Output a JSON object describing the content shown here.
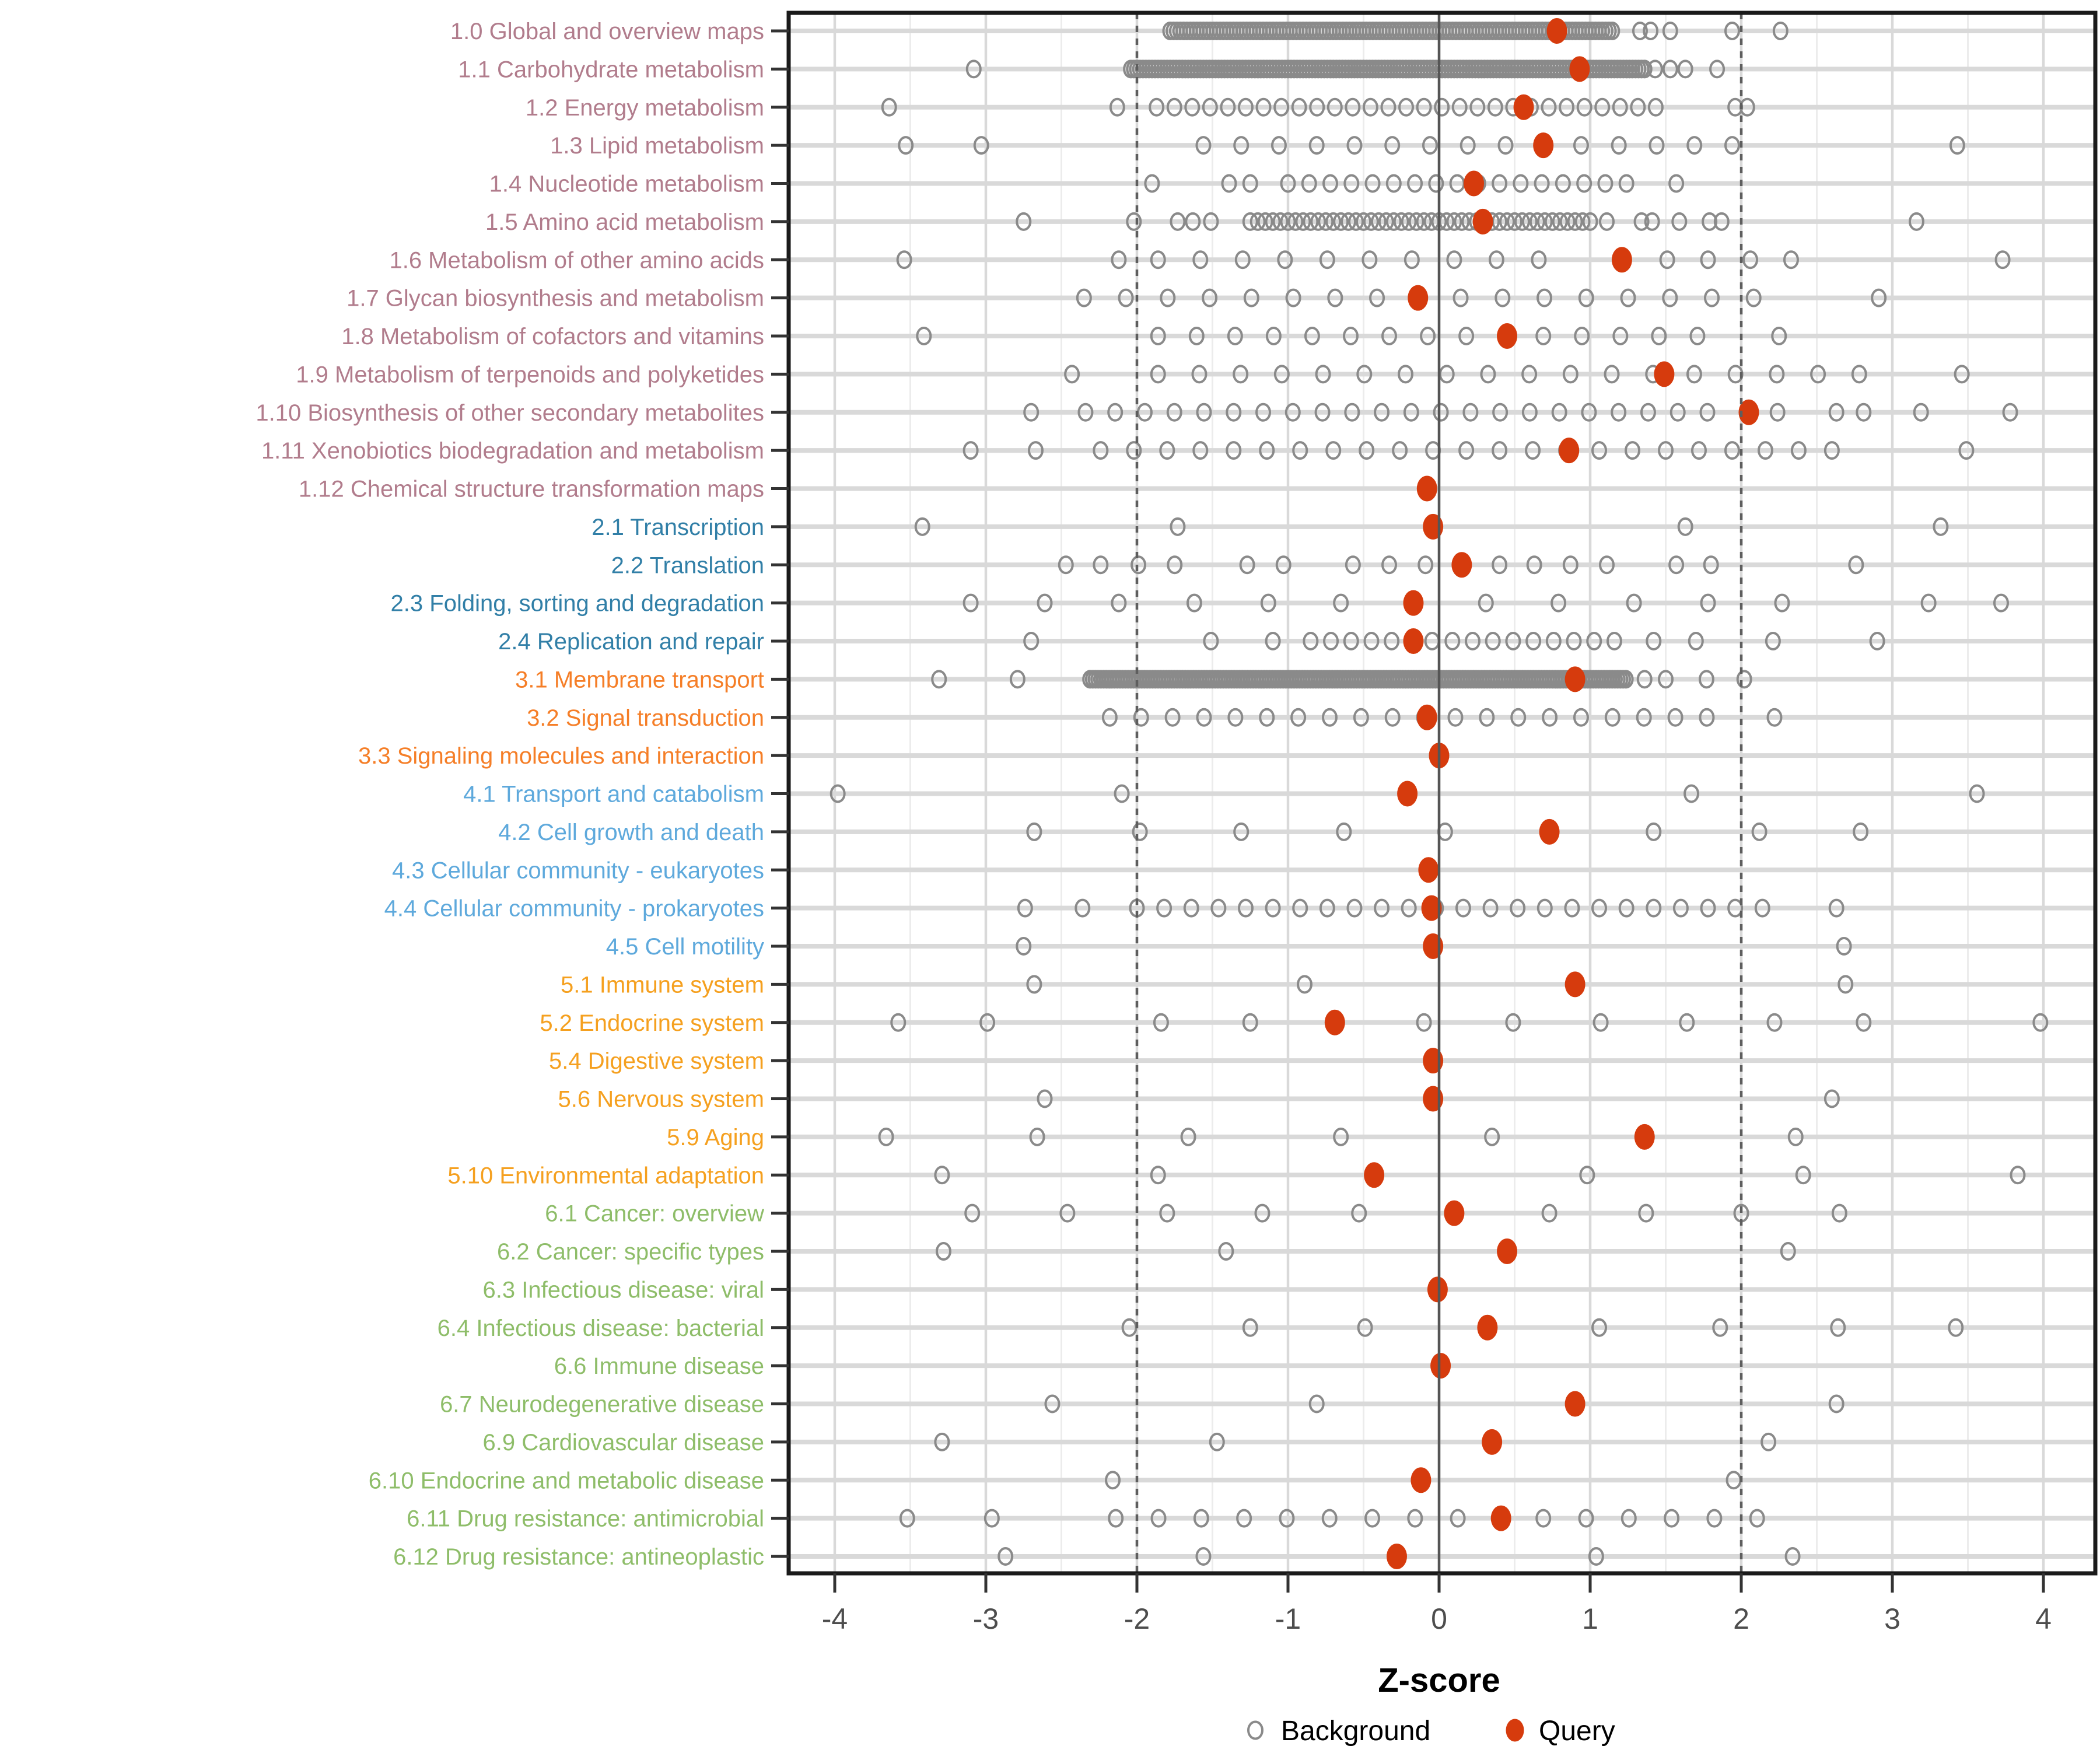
{
  "chart_data": {
    "type": "scatter",
    "title": "",
    "xlabel": "Z-score",
    "xlim": [
      -4.33,
      4.34
    ],
    "x_ticks": [
      -4,
      -3,
      -2,
      -1,
      0,
      1,
      2,
      3,
      4
    ],
    "reference_lines": {
      "solid": [
        0
      ],
      "dotted": [
        -2,
        2
      ]
    },
    "legend": [
      {
        "label": "Background",
        "marker": "open-circle",
        "color": "#8A8A8A"
      },
      {
        "label": "Query",
        "marker": "filled-circle",
        "color": "#D63B0D"
      }
    ],
    "colors": {
      "query": "#D63B0D",
      "background_stroke": "#8A8A8A",
      "grid_major": "#D9D9D9",
      "grid_minor": "#ECECEC",
      "row_line": "#D9D9D9",
      "ref_dotted": "#5E5E5E",
      "ref_zero": "#555555",
      "axis_text": "#4D4D4D",
      "tick": "#333333",
      "panel_border": "#1A1A1A",
      "xlabel_color": "#000000"
    },
    "groups": [
      {
        "id": "1",
        "color": "#B17C8C"
      },
      {
        "id": "2",
        "color": "#317FA7"
      },
      {
        "id": "3",
        "color": "#F57E27"
      },
      {
        "id": "4",
        "color": "#5EA9DC"
      },
      {
        "id": "5",
        "color": "#F5A01F"
      },
      {
        "id": "6",
        "color": "#8EBD69"
      }
    ],
    "rows": [
      {
        "label": "1.0 Global and overview maps",
        "group": "1",
        "query": 0.78,
        "background": {
          "runs": [
            [
              -1.78,
              1.15,
              0.022
            ]
          ],
          "points": [
            1.33,
            1.4,
            1.53,
            1.94,
            2.26
          ]
        }
      },
      {
        "label": "1.1 Carbohydrate metabolism",
        "group": "1",
        "query": 0.93,
        "background": {
          "runs": [
            [
              -2.04,
              1.36,
              0.02
            ]
          ],
          "points": [
            -3.08,
            1.43,
            1.53,
            1.63,
            1.84
          ]
        }
      },
      {
        "label": "1.2 Energy metabolism",
        "group": "1",
        "query": 0.56,
        "background": {
          "runs": [
            [
              -1.87,
              1.53,
              0.118
            ]
          ],
          "points": [
            -3.64,
            -2.13,
            1.96,
            2.04
          ]
        }
      },
      {
        "label": "1.3 Lipid metabolism",
        "group": "1",
        "query": 0.69,
        "background": {
          "runs": [
            [
              -1.56,
              2.18,
              0.25
            ]
          ],
          "points": [
            -3.53,
            -3.03,
            3.43
          ]
        }
      },
      {
        "label": "1.4 Nucleotide metabolism",
        "group": "1",
        "query": 0.23,
        "background": {
          "runs": [
            [
              -1.0,
              1.31,
              0.14
            ]
          ],
          "points": [
            -1.9,
            -1.39,
            -1.25,
            1.57
          ]
        }
      },
      {
        "label": "1.5 Amino acid metabolism",
        "group": "1",
        "query": 0.29,
        "background": {
          "runs": [
            [
              -1.25,
              1.03,
              0.05
            ]
          ],
          "points": [
            -2.75,
            -2.02,
            -1.73,
            -1.63,
            -1.51,
            1.11,
            1.34,
            1.41,
            1.59,
            1.79,
            1.87,
            3.16
          ]
        }
      },
      {
        "label": "1.6 Metabolism of other amino acids",
        "group": "1",
        "query": 1.21,
        "background": {
          "runs": [
            [
              -1.86,
              0.92,
              0.28
            ]
          ],
          "points": [
            -3.54,
            -2.12,
            1.51,
            1.78,
            2.06,
            2.33,
            3.73
          ]
        }
      },
      {
        "label": "1.7 Glycan biosynthesis and metabolism",
        "group": "1",
        "query": -0.14,
        "background": {
          "runs": [
            [
              -2.35,
              2.35,
              0.277
            ]
          ],
          "points": [
            2.91
          ]
        }
      },
      {
        "label": "1.8 Metabolism of cofactors and vitamins",
        "group": "1",
        "query": 0.45,
        "background": {
          "runs": [
            [
              -1.86,
              1.75,
              0.255
            ]
          ],
          "points": [
            -3.41,
            2.25
          ]
        }
      },
      {
        "label": "1.9 Metabolism of terpenoids and polyketides",
        "group": "1",
        "query": 1.49,
        "background": {
          "runs": [
            [
              -1.86,
              2.88,
              0.273
            ]
          ],
          "points": [
            -2.43,
            3.46
          ]
        }
      },
      {
        "label": "1.10 Biosynthesis of other secondary metabolites",
        "group": "1",
        "query": 2.05,
        "background": {
          "runs": [
            [
              -2.34,
              1.86,
              0.196
            ]
          ],
          "points": [
            -2.7,
            2.24,
            2.63,
            2.81,
            3.19,
            3.78
          ]
        }
      },
      {
        "label": "1.11 Xenobiotics biodegradation and metabolism",
        "group": "1",
        "query": 0.86,
        "background": {
          "runs": [
            [
              -2.24,
              2.64,
              0.22
            ]
          ],
          "points": [
            -3.1,
            -2.67,
            3.49
          ]
        }
      },
      {
        "label": "1.12 Chemical structure transformation maps",
        "group": "1",
        "query": -0.08,
        "background": {
          "runs": [],
          "points": []
        }
      },
      {
        "label": "2.1 Transcription",
        "group": "2",
        "query": -0.04,
        "background": {
          "runs": [],
          "points": [
            -3.42,
            -1.73,
            1.63,
            3.32
          ]
        }
      },
      {
        "label": "2.2 Translation",
        "group": "2",
        "query": 0.15,
        "background": {
          "runs": [],
          "points": [
            -2.47,
            -2.24,
            -1.99,
            -1.75,
            -1.27,
            -1.03,
            -0.57,
            -0.33,
            -0.09,
            0.4,
            0.63,
            0.87,
            1.11,
            1.57,
            1.8,
            2.76
          ]
        }
      },
      {
        "label": "2.3 Folding, sorting and degradation",
        "group": "2",
        "query": -0.17,
        "background": {
          "runs": [],
          "points": [
            -3.1,
            -2.61,
            -2.12,
            -1.62,
            -1.13,
            -0.65,
            0.31,
            0.79,
            1.29,
            1.78,
            2.27,
            3.24,
            3.72
          ]
        }
      },
      {
        "label": "2.4 Replication and repair",
        "group": "2",
        "query": -0.17,
        "background": {
          "runs": [
            [
              -0.85,
              1.16,
              0.134
            ]
          ],
          "points": [
            -2.7,
            -1.51,
            -1.1,
            1.42,
            1.7,
            2.21,
            2.9
          ]
        }
      },
      {
        "label": "3.1 Membrane transport",
        "group": "3",
        "query": 0.9,
        "background": {
          "runs": [
            [
              -2.31,
              1.25,
              0.018
            ]
          ],
          "points": [
            -3.31,
            -2.79,
            1.36,
            1.5,
            1.77,
            2.02
          ]
        }
      },
      {
        "label": "3.2 Signal transduction",
        "group": "3",
        "query": -0.08,
        "background": {
          "runs": [
            [
              -2.18,
              1.84,
              0.208
            ]
          ],
          "points": [
            2.22
          ]
        }
      },
      {
        "label": "3.3 Signaling molecules and interaction",
        "group": "3",
        "query": 0.0,
        "background": {
          "runs": [],
          "points": []
        }
      },
      {
        "label": "4.1 Transport and catabolism",
        "group": "4",
        "query": -0.21,
        "background": {
          "runs": [],
          "points": [
            -3.98,
            -2.1,
            1.67,
            3.56
          ]
        }
      },
      {
        "label": "4.2 Cell growth and death",
        "group": "4",
        "query": 0.73,
        "background": {
          "runs": [],
          "points": [
            -2.68,
            -1.98,
            -1.31,
            -0.63,
            0.04,
            1.42,
            2.12,
            2.79
          ]
        }
      },
      {
        "label": "4.3 Cellular community - eukaryotes",
        "group": "4",
        "query": -0.07,
        "background": {
          "runs": [],
          "points": []
        }
      },
      {
        "label": "4.4 Cellular community - prokaryotes",
        "group": "4",
        "query": -0.05,
        "background": {
          "runs": [
            [
              -2.0,
              2.27,
              0.18
            ]
          ],
          "points": [
            -2.74,
            -2.36,
            2.63
          ]
        }
      },
      {
        "label": "4.5 Cell motility",
        "group": "4",
        "query": -0.04,
        "background": {
          "runs": [],
          "points": [
            -2.75,
            2.68
          ]
        }
      },
      {
        "label": "5.1 Immune system",
        "group": "5",
        "query": 0.9,
        "background": {
          "runs": [],
          "points": [
            -2.68,
            -0.89,
            2.69
          ]
        }
      },
      {
        "label": "5.2 Endocrine system",
        "group": "5",
        "query": -0.69,
        "background": {
          "runs": [],
          "points": [
            -3.58,
            -2.99,
            -1.84,
            -1.25,
            -0.1,
            0.49,
            1.07,
            1.64,
            2.22,
            2.81,
            3.98
          ]
        }
      },
      {
        "label": "5.4 Digestive system",
        "group": "5",
        "query": -0.04,
        "background": {
          "runs": [],
          "points": []
        }
      },
      {
        "label": "5.6 Nervous system",
        "group": "5",
        "query": -0.04,
        "background": {
          "runs": [],
          "points": [
            -2.61,
            2.6
          ]
        }
      },
      {
        "label": "5.9 Aging",
        "group": "5",
        "query": 1.36,
        "background": {
          "runs": [],
          "points": [
            -3.66,
            -2.66,
            -1.66,
            -0.65,
            0.35,
            2.36
          ]
        }
      },
      {
        "label": "5.10 Environmental adaptation",
        "group": "5",
        "query": -0.43,
        "background": {
          "runs": [],
          "points": [
            -3.29,
            -1.86,
            0.98,
            2.41,
            3.83
          ]
        }
      },
      {
        "label": "6.1 Cancer: overview",
        "group": "6",
        "query": 0.1,
        "background": {
          "runs": [],
          "points": [
            -3.09,
            -2.46,
            -1.8,
            -1.17,
            -0.53,
            0.73,
            1.37,
            2.0,
            2.65
          ]
        }
      },
      {
        "label": "6.2 Cancer: specific types",
        "group": "6",
        "query": 0.45,
        "background": {
          "runs": [],
          "points": [
            -3.28,
            -1.41,
            2.31
          ]
        }
      },
      {
        "label": "6.3 Infectious disease: viral",
        "group": "6",
        "query": -0.01,
        "background": {
          "runs": [],
          "points": []
        }
      },
      {
        "label": "6.4 Infectious disease: bacterial",
        "group": "6",
        "query": 0.32,
        "background": {
          "runs": [],
          "points": [
            -2.05,
            -1.25,
            -0.49,
            1.06,
            1.86,
            2.64,
            3.42
          ]
        }
      },
      {
        "label": "6.6 Immune disease",
        "group": "6",
        "query": 0.01,
        "background": {
          "runs": [],
          "points": []
        }
      },
      {
        "label": "6.7 Neurodegenerative disease",
        "group": "6",
        "query": 0.9,
        "background": {
          "runs": [],
          "points": [
            -2.56,
            -0.81,
            2.63
          ]
        }
      },
      {
        "label": "6.9 Cardiovascular disease",
        "group": "6",
        "query": 0.35,
        "background": {
          "runs": [],
          "points": [
            -3.29,
            -1.47,
            2.18
          ]
        }
      },
      {
        "label": "6.10 Endocrine and metabolic disease",
        "group": "6",
        "query": -0.12,
        "background": {
          "runs": [],
          "points": [
            -2.16,
            1.95
          ]
        }
      },
      {
        "label": "6.11 Drug resistance: antimicrobial",
        "group": "6",
        "query": 0.41,
        "background": {
          "runs": [
            [
              -2.14,
              2.37,
              0.283
            ]
          ],
          "points": [
            -3.52,
            -2.96
          ]
        }
      },
      {
        "label": "6.12 Drug resistance: antineoplastic",
        "group": "6",
        "query": -0.28,
        "background": {
          "runs": [],
          "points": [
            -2.87,
            -1.56,
            1.04,
            2.34
          ]
        }
      }
    ]
  }
}
